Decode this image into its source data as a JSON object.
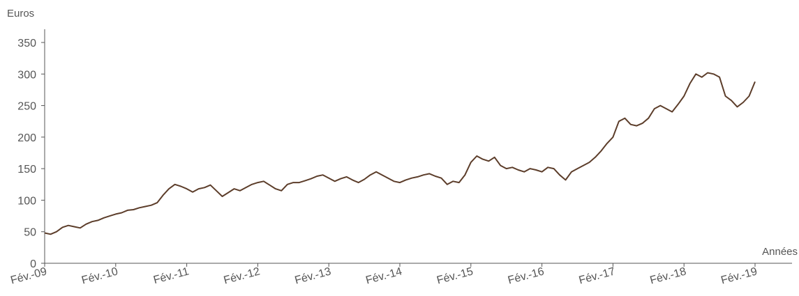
{
  "chart_data": {
    "type": "line",
    "ylabel": "Euros",
    "xlabel": "Années",
    "ylim": [
      0,
      350
    ],
    "yticks": [
      "0",
      "50",
      "100",
      "150",
      "200",
      "250",
      "300",
      "350"
    ],
    "xticks": [
      "Fév.-09",
      "Fév.-10",
      "Fév.-11",
      "Fév.-12",
      "Fév.-13",
      "Fév.-14",
      "Fév.-15",
      "Fév.-16",
      "Fév.-17",
      "Fév.-18",
      "Fév.-19"
    ],
    "line_color": "#5c3d2a",
    "grid": false,
    "series": [
      {
        "x": [
          "2009-02",
          "2009-03",
          "2009-04",
          "2009-05",
          "2009-06",
          "2009-07",
          "2009-08",
          "2009-09",
          "2009-10",
          "2009-11",
          "2009-12",
          "2010-01",
          "2010-02",
          "2010-03",
          "2010-04",
          "2010-05",
          "2010-06",
          "2010-07",
          "2010-08",
          "2010-09",
          "2010-10",
          "2010-11",
          "2010-12",
          "2011-01",
          "2011-02",
          "2011-03",
          "2011-04",
          "2011-05",
          "2011-06",
          "2011-07",
          "2011-08",
          "2011-09",
          "2011-10",
          "2011-11",
          "2011-12",
          "2012-01",
          "2012-02",
          "2012-03",
          "2012-04",
          "2012-05",
          "2012-06",
          "2012-07",
          "2012-08",
          "2012-09",
          "2012-10",
          "2012-11",
          "2012-12",
          "2013-01",
          "2013-02",
          "2013-03",
          "2013-04",
          "2013-05",
          "2013-06",
          "2013-07",
          "2013-08",
          "2013-09",
          "2013-10",
          "2013-11",
          "2013-12",
          "2014-01",
          "2014-02",
          "2014-03",
          "2014-04",
          "2014-05",
          "2014-06",
          "2014-07",
          "2014-08",
          "2014-09",
          "2014-10",
          "2014-11",
          "2014-12",
          "2015-01",
          "2015-02",
          "2015-03",
          "2015-04",
          "2015-05",
          "2015-06",
          "2015-07",
          "2015-08",
          "2015-09",
          "2015-10",
          "2015-11",
          "2015-12",
          "2016-01",
          "2016-02",
          "2016-03",
          "2016-04",
          "2016-05",
          "2016-06",
          "2016-07",
          "2016-08",
          "2016-09",
          "2016-10",
          "2016-11",
          "2016-12",
          "2017-01",
          "2017-02",
          "2017-03",
          "2017-04",
          "2017-05",
          "2017-06",
          "2017-07",
          "2017-08",
          "2017-09",
          "2017-10",
          "2017-11",
          "2017-12",
          "2018-01",
          "2018-02",
          "2018-03",
          "2018-04",
          "2018-05",
          "2018-06",
          "2018-07",
          "2018-08",
          "2018-09",
          "2018-10",
          "2018-11",
          "2018-12",
          "2019-01",
          "2019-02"
        ],
        "y": [
          48,
          46,
          50,
          57,
          60,
          58,
          56,
          62,
          66,
          68,
          72,
          75,
          78,
          80,
          84,
          85,
          88,
          90,
          92,
          96,
          108,
          118,
          125,
          122,
          118,
          113,
          118,
          120,
          124,
          115,
          106,
          112,
          118,
          115,
          120,
          125,
          128,
          130,
          124,
          118,
          115,
          125,
          128,
          128,
          131,
          134,
          138,
          140,
          135,
          130,
          134,
          137,
          132,
          128,
          133,
          140,
          145,
          140,
          135,
          130,
          128,
          132,
          135,
          137,
          140,
          142,
          138,
          135,
          125,
          130,
          128,
          140,
          160,
          170,
          165,
          162,
          168,
          155,
          150,
          152,
          148,
          145,
          150,
          148,
          145,
          152,
          150,
          140,
          132,
          145,
          150,
          155,
          160,
          168,
          178,
          190,
          200,
          225,
          230,
          220,
          218,
          222,
          230,
          245,
          250,
          245,
          240,
          252,
          265,
          285,
          300,
          295,
          302,
          300,
          295,
          265,
          258,
          248,
          255,
          265,
          288
        ]
      }
    ]
  }
}
